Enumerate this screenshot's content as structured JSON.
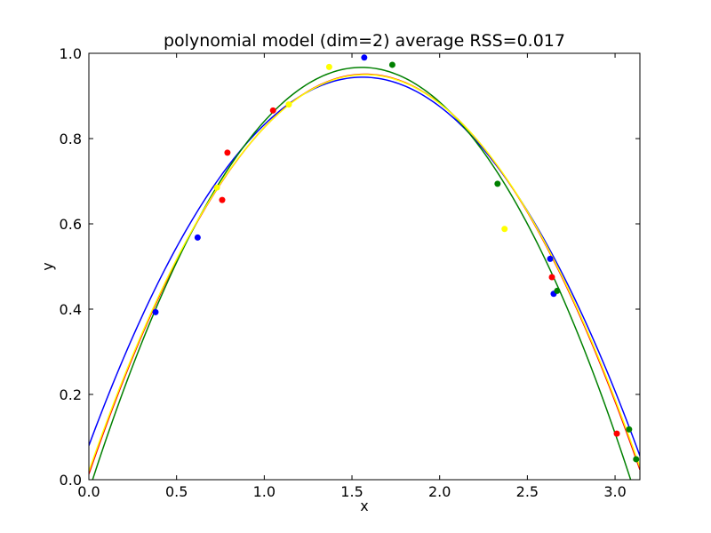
{
  "chart_data": {
    "type": "line",
    "title": "polynomial model (dim=2) average RSS=0.017",
    "xlabel": "x",
    "ylabel": "y",
    "xlim": [
      0.0,
      3.14159
    ],
    "ylim": [
      0.0,
      1.0
    ],
    "xticks": [
      "0.0",
      "0.5",
      "1.0",
      "1.5",
      "2.0",
      "2.5",
      "3.0"
    ],
    "xtick_values": [
      0.0,
      0.5,
      1.0,
      1.5,
      2.0,
      2.5,
      3.0
    ],
    "yticks": [
      "0.0",
      "0.2",
      "0.4",
      "0.6",
      "0.8",
      "1.0"
    ],
    "ytick_values": [
      0.0,
      0.2,
      0.4,
      0.6,
      0.8,
      1.0
    ],
    "grid": false,
    "legend": "none",
    "series": [
      {
        "color": "#0000ff",
        "curve": {
          "vertex_x": 1.56,
          "peak_y": 0.944,
          "coef_a": -0.355
        },
        "points": [
          {
            "x": 0.38,
            "y": 0.393
          },
          {
            "x": 0.62,
            "y": 0.568
          },
          {
            "x": 1.57,
            "y": 0.99
          },
          {
            "x": 2.63,
            "y": 0.518
          },
          {
            "x": 2.65,
            "y": 0.436
          }
        ]
      },
      {
        "color": "#ff0000",
        "curve": {
          "vertex_x": 1.575,
          "peak_y": 0.951,
          "coef_a": -0.378
        },
        "points": [
          {
            "x": 0.76,
            "y": 0.656
          },
          {
            "x": 0.79,
            "y": 0.767
          },
          {
            "x": 1.05,
            "y": 0.866
          },
          {
            "x": 2.64,
            "y": 0.475
          },
          {
            "x": 3.01,
            "y": 0.108
          }
        ]
      },
      {
        "color": "#008000",
        "curve": {
          "vertex_x": 1.555,
          "peak_y": 0.967,
          "coef_a": -0.411
        },
        "points": [
          {
            "x": 1.73,
            "y": 0.973
          },
          {
            "x": 2.33,
            "y": 0.694
          },
          {
            "x": 2.67,
            "y": 0.443
          },
          {
            "x": 3.08,
            "y": 0.118
          },
          {
            "x": 3.12,
            "y": 0.048
          }
        ]
      },
      {
        "color": "#ffff00",
        "curve": {
          "vertex_x": 1.575,
          "peak_y": 0.95,
          "coef_a": -0.375
        },
        "points": [
          {
            "x": 0.73,
            "y": 0.685
          },
          {
            "x": 1.14,
            "y": 0.88
          },
          {
            "x": 1.37,
            "y": 0.968
          },
          {
            "x": 2.37,
            "y": 0.588
          }
        ]
      }
    ]
  }
}
